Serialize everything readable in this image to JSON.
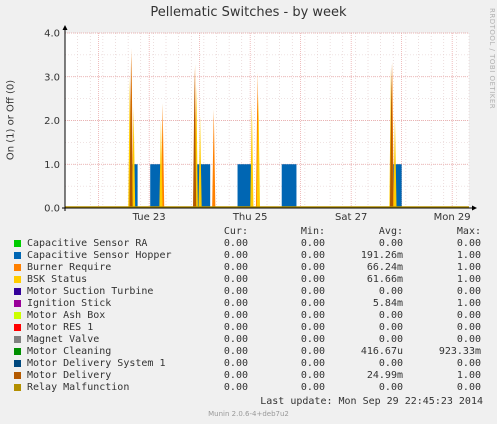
{
  "header": {
    "title": "Pellematic Switches - by week",
    "watermark": "RRDTOOL / TOBI OETIKER"
  },
  "chart_data": {
    "type": "area",
    "title": "Pellematic Switches - by week",
    "ylabel": "On (1) or Off (0)",
    "xlabel": "",
    "ylim": [
      0,
      4.0
    ],
    "yticks": [
      "0.0",
      "1.0",
      "2.0",
      "3.0",
      "4.0"
    ],
    "xticks": [
      "Tue 23",
      "Thu 25",
      "Sat 27",
      "Mon 29"
    ],
    "x_range_hours": [
      0,
      192
    ],
    "xtick_hours": [
      40,
      88,
      136,
      184
    ],
    "grid": true,
    "series": [
      {
        "name": "Capacitive Sensor RA",
        "color": "#00cc00",
        "mode": "line",
        "segments": []
      },
      {
        "name": "Capacitive Sensor Hopper",
        "color": "#0066b3",
        "mode": "block",
        "segments": [
          [
            30.5,
            34.5
          ],
          [
            40.5,
            45.5
          ],
          [
            61.5,
            69
          ],
          [
            82,
            89
          ],
          [
            103,
            110
          ],
          [
            156,
            160
          ]
        ],
        "value": 1.0
      },
      {
        "name": "Burner Require",
        "color": "#ff8000",
        "mode": "spike",
        "spikes": [
          [
            31.6,
            3.65
          ],
          [
            31.2,
            2.9
          ],
          [
            46.4,
            2.4
          ],
          [
            61.8,
            3.3
          ],
          [
            70.7,
            2.25
          ],
          [
            91.5,
            3.1
          ],
          [
            155.5,
            3.35
          ]
        ]
      },
      {
        "name": "BSK Status",
        "color": "#ffcc00",
        "mode": "spike",
        "spikes": [
          [
            30.8,
            3.0
          ],
          [
            32.6,
            2.3
          ],
          [
            45.6,
            2.0
          ],
          [
            62.4,
            2.8
          ],
          [
            64.2,
            2.1
          ],
          [
            88.8,
            2.4
          ],
          [
            91.9,
            2.6
          ],
          [
            154.9,
            3.2
          ],
          [
            156.8,
            2.1
          ]
        ]
      },
      {
        "name": "Motor Suction Turbine",
        "color": "#330099",
        "mode": "line",
        "segments": []
      },
      {
        "name": "Ignition Stick",
        "color": "#990099",
        "mode": "line",
        "segments": []
      },
      {
        "name": "Motor Ash Box",
        "color": "#ccff00",
        "mode": "line",
        "segments": []
      },
      {
        "name": "Motor RES 1",
        "color": "#ff0000",
        "mode": "line",
        "segments": []
      },
      {
        "name": "Magnet Valve",
        "color": "#808080",
        "mode": "line",
        "segments": []
      },
      {
        "name": "Motor Cleaning",
        "color": "#008f00",
        "mode": "line",
        "segments": []
      },
      {
        "name": "Motor Delivery System 1",
        "color": "#00487d",
        "mode": "line",
        "segments": []
      },
      {
        "name": "Motor Delivery",
        "color": "#b35a00",
        "mode": "spike",
        "spikes": [
          [
            31.4,
            3.5
          ],
          [
            61.6,
            3.2
          ],
          [
            155.2,
            3.3
          ]
        ]
      },
      {
        "name": "Relay Malfunction",
        "color": "#b38f00",
        "mode": "baseline",
        "value": 0.0
      }
    ]
  },
  "legend": {
    "headers": {
      "cur": "Cur:",
      "min": "Min:",
      "avg": "Avg:",
      "max": "Max:"
    },
    "rows": [
      {
        "name": "Capacitive Sensor RA",
        "color": "#00cc00",
        "cur": "0.00",
        "min": "0.00",
        "avg": "0.00",
        "max": "0.00"
      },
      {
        "name": "Capacitive Sensor Hopper",
        "color": "#0066b3",
        "cur": "0.00",
        "min": "0.00",
        "avg": "191.26m",
        "max": "1.00"
      },
      {
        "name": "Burner Require",
        "color": "#ff8000",
        "cur": "0.00",
        "min": "0.00",
        "avg": "66.24m",
        "max": "1.00"
      },
      {
        "name": "BSK Status",
        "color": "#ffcc00",
        "cur": "0.00",
        "min": "0.00",
        "avg": "61.66m",
        "max": "1.00"
      },
      {
        "name": "Motor Suction Turbine",
        "color": "#330099",
        "cur": "0.00",
        "min": "0.00",
        "avg": "0.00",
        "max": "0.00"
      },
      {
        "name": "Ignition Stick",
        "color": "#990099",
        "cur": "0.00",
        "min": "0.00",
        "avg": "5.84m",
        "max": "1.00"
      },
      {
        "name": "Motor Ash Box",
        "color": "#ccff00",
        "cur": "0.00",
        "min": "0.00",
        "avg": "0.00",
        "max": "0.00"
      },
      {
        "name": "Motor RES 1",
        "color": "#ff0000",
        "cur": "0.00",
        "min": "0.00",
        "avg": "0.00",
        "max": "0.00"
      },
      {
        "name": "Magnet Valve",
        "color": "#808080",
        "cur": "0.00",
        "min": "0.00",
        "avg": "0.00",
        "max": "0.00"
      },
      {
        "name": "Motor Cleaning",
        "color": "#008f00",
        "cur": "0.00",
        "min": "0.00",
        "avg": "416.67u",
        "max": "923.33m"
      },
      {
        "name": "Motor Delivery System 1",
        "color": "#00487d",
        "cur": "0.00",
        "min": "0.00",
        "avg": "0.00",
        "max": "0.00"
      },
      {
        "name": "Motor Delivery",
        "color": "#b35a00",
        "cur": "0.00",
        "min": "0.00",
        "avg": "24.99m",
        "max": "1.00"
      },
      {
        "name": "Relay Malfunction",
        "color": "#b38f00",
        "cur": "0.00",
        "min": "0.00",
        "avg": "0.00",
        "max": "0.00"
      }
    ]
  },
  "footer": {
    "last_update": "Last update:  Mon Sep 29 22:45:23 2014",
    "version": "Munin 2.0.6-4+deb7u2"
  }
}
